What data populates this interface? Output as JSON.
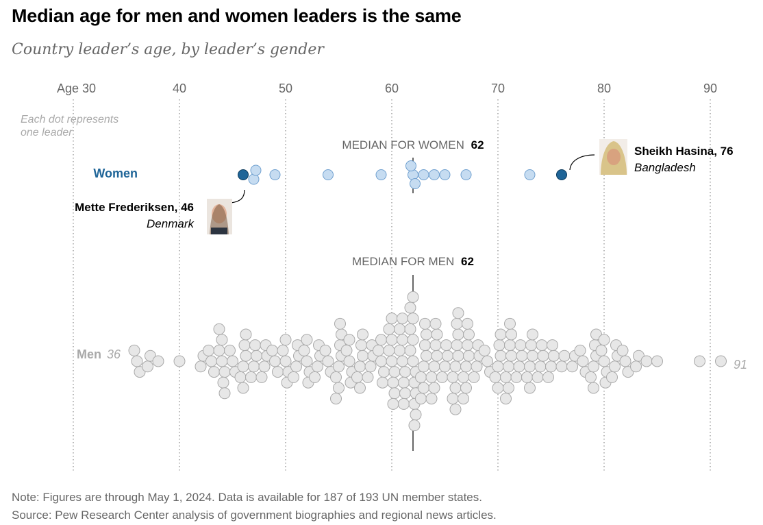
{
  "title": "Median age for men and women leaders is the same",
  "subtitle": "Country leader’s age, by leader’s gender",
  "note": "Note: Figures are through May 1, 2024. Data is available for 187 of 193 UN member states.",
  "source": "Source: Pew Research Center analysis of government biographies and regional news articles.",
  "legend_note": [
    "Each dot represents",
    "one leader"
  ],
  "colors": {
    "women_fill": "#c6dcf1",
    "women_stroke": "#6e9fcf",
    "women_label": "#1f6598",
    "highlight_fill": "#1f6598",
    "highlight_stroke": "#0c3a5c",
    "men_fill": "#e7e7e7",
    "men_stroke": "#a9a9a9",
    "men_label": "#a9a9a9",
    "grid": "#888888"
  },
  "chart_data": {
    "type": "scatter",
    "subtype": "beeswarm",
    "title": "Median age for men and women leaders is the same",
    "subtitle": "Country leader’s age, by leader’s gender",
    "x_axis": {
      "range": [
        30,
        92
      ],
      "ticks": [
        30,
        40,
        50,
        60,
        70,
        80,
        90
      ],
      "tick_labels": [
        "Age 30",
        "40",
        "50",
        "60",
        "70",
        "80",
        "90"
      ]
    },
    "grid": "vertical-dotted",
    "series": [
      {
        "name": "Women",
        "values": [
          46,
          47,
          47,
          49,
          54,
          59,
          62,
          62,
          62,
          63,
          64,
          65,
          67,
          73,
          76
        ],
        "median": 62,
        "median_label": "MEDIAN FOR WOMEN",
        "median_value": "62"
      },
      {
        "name": "Men",
        "min": 36,
        "max": 91,
        "min_label": "36",
        "max_label": "91",
        "counts_by_age": {
          "36": 3,
          "37": 2,
          "38": 1,
          "40": 1,
          "42": 2,
          "43": 3,
          "44": 7,
          "45": 3,
          "46": 6,
          "47": 4,
          "48": 4,
          "49": 3,
          "50": 5,
          "51": 4,
          "52": 5,
          "53": 4,
          "54": 3,
          "55": 8,
          "56": 5,
          "57": 6,
          "58": 4,
          "59": 5,
          "60": 9,
          "61": 9,
          "62": 13,
          "63": 8,
          "64": 8,
          "65": 4,
          "66": 10,
          "67": 8,
          "68": 4,
          "69": 3,
          "70": 6,
          "71": 8,
          "72": 4,
          "73": 6,
          "74": 4,
          "75": 4,
          "76": 2,
          "77": 2,
          "78": 3,
          "79": 6,
          "80": 5,
          "81": 4,
          "82": 3,
          "83": 2,
          "84": 1,
          "85": 1,
          "89": 1,
          "91": 1
        },
        "median": 62,
        "median_label": "MEDIAN FOR MEN",
        "median_value": "62"
      }
    ],
    "annotations": [
      {
        "name": "Mette Frederiksen, 46",
        "country": "Denmark",
        "series": "Women",
        "age": 46
      },
      {
        "name": "Sheikh Hasina, 76",
        "country": "Bangladesh",
        "series": "Women",
        "age": 76
      }
    ]
  }
}
